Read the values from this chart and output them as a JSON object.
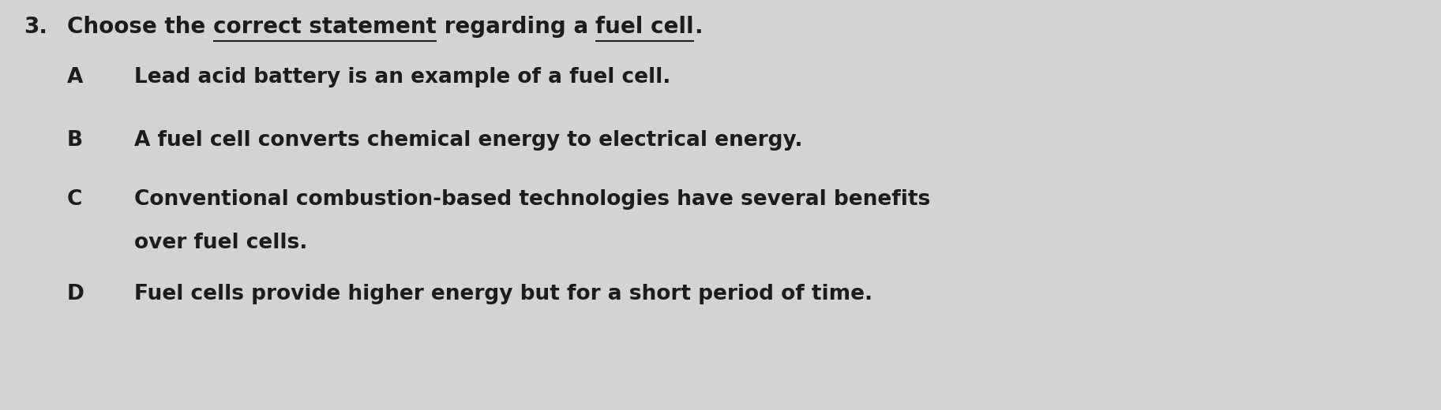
{
  "background_color": "#d3d3d3",
  "question_number": "3.",
  "segments_q": [
    [
      "Choose the ",
      false
    ],
    [
      "correct statement",
      true
    ],
    [
      " regarding a ",
      false
    ],
    [
      "fuel cell",
      true
    ],
    [
      ".",
      false
    ]
  ],
  "options": [
    {
      "letter": "A",
      "text": "Lead acid battery is an example of a fuel cell."
    },
    {
      "letter": "B",
      "text": "A fuel cell converts chemical energy to electrical energy."
    },
    {
      "letter": "C",
      "line1": "Conventional combustion-based technologies have several benefits",
      "line2": "over fuel cells."
    },
    {
      "letter": "D",
      "text": "Fuel cells provide higher energy but for a short period of time."
    }
  ],
  "font_size_question": 20,
  "font_size_options": 19,
  "text_color": "#1c1c1c",
  "fig_width": 18.25,
  "fig_height": 5.2,
  "dpi": 100
}
